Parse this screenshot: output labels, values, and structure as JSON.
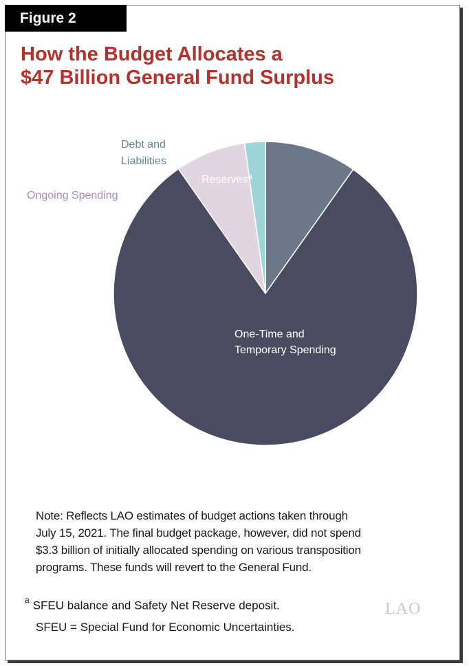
{
  "figure_label": "Figure 2",
  "title_line1": "How the Budget Allocates a",
  "title_line2": "$47 Billion General Fund Surplus",
  "chart_data": {
    "type": "pie",
    "title": "How the Budget Allocates a $47 Billion General Fund Surplus",
    "slices": [
      {
        "label": "Reserves",
        "superscript": "a",
        "value": 9.8,
        "color": "#6c7888",
        "label_color": "#ffffff"
      },
      {
        "label": "One-Time and Temporary Spending",
        "value": 80.5,
        "color": "#4a4b61",
        "label_color": "#ffffff"
      },
      {
        "label": "Ongoing Spending",
        "value": 7.5,
        "color": "#e0d5e0",
        "label_color": "#a58eb6"
      },
      {
        "label": "Debt and Liabilities",
        "value": 2.2,
        "color": "#9ed5d8",
        "label_color": "#5f8d8a"
      }
    ],
    "value_unit": "approximate percent of surplus (estimated from slice angles; not printed)"
  },
  "labels": {
    "reserves": "Reserves",
    "reserves_sup": "a",
    "one_time_line1": "One-Time and",
    "one_time_line2": "Temporary Spending",
    "ongoing": "Ongoing Spending",
    "debt_line1": "Debt and",
    "debt_line2": "Liabilities"
  },
  "note": {
    "line1": "Note: Reflects LAO estimates of budget actions taken through",
    "line2": "July 15, 2021. The final budget package, however, did not spend",
    "line3": "$3.3 billion of initially allocated spending on various transposition",
    "line4": "programs. These funds will revert to the General Fund."
  },
  "footnotes": {
    "a_marker": "a",
    "a_text": "SFEU balance and Safety Net Reserve deposit.",
    "sfeu": "SFEU = Special Fund for Economic Uncertainties."
  },
  "logo_text": "LAO"
}
